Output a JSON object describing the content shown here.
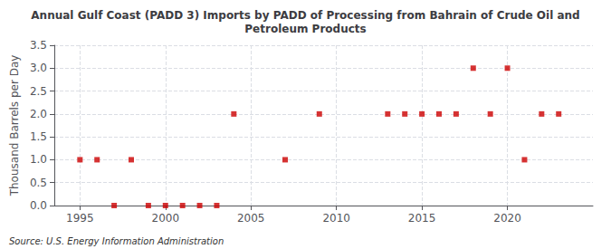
{
  "chart_data": {
    "type": "scatter",
    "title": "Annual Gulf Coast (PADD 3) Imports by PADD of Processing from Bahrain of Crude Oil and\nPetroleum Products",
    "ylabel": "Thousand Barrels per Day",
    "annotations": [
      "Source: U.S. Energy Information Administration"
    ],
    "x": [
      1995,
      1996,
      1997,
      1998,
      1999,
      2000,
      2001,
      2002,
      2003,
      2004,
      2007,
      2009,
      2013,
      2014,
      2015,
      2016,
      2017,
      2018,
      2019,
      2020,
      2021,
      2022,
      2023
    ],
    "values": [
      1.0,
      1.0,
      0.0,
      1.0,
      0.0,
      0.0,
      0.0,
      0.0,
      0.0,
      2.0,
      1.0,
      2.0,
      2.0,
      2.0,
      2.0,
      2.0,
      2.0,
      3.0,
      2.0,
      3.0,
      1.0,
      2.0,
      2.0
    ],
    "color": "#cc0000",
    "marker": "square",
    "xlim": [
      1993.5,
      2025
    ],
    "xticks": [
      1995,
      2000,
      2005,
      2010,
      2015,
      2020
    ],
    "ylim": [
      0.0,
      3.5
    ],
    "yticks": [
      {
        "value": 0,
        "label": "0.0"
      },
      0.5,
      {
        "value": 1,
        "label": "1.0"
      },
      1.5,
      {
        "value": 2,
        "label": "2.0"
      },
      2.5,
      {
        "value": 3,
        "label": "3.0"
      },
      3.5
    ],
    "grid": true
  }
}
